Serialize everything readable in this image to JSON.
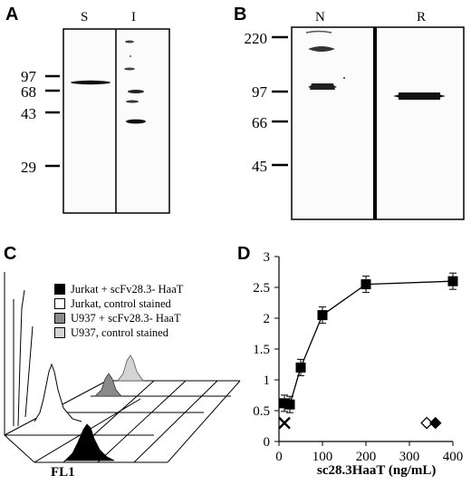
{
  "panel_a": {
    "letter": "A",
    "lanes": [
      "S",
      "I"
    ],
    "markers": [
      "97",
      "68",
      "43",
      "29"
    ]
  },
  "panel_b": {
    "letter": "B",
    "lanes": [
      "N",
      "R"
    ],
    "markers": [
      "220",
      "97",
      "66",
      "45"
    ]
  },
  "panel_c": {
    "letter": "C",
    "legend": [
      {
        "label": "Jurkat + scFv28.3- HaaT",
        "color": "#000000"
      },
      {
        "label": "Jurkat,     control stained",
        "color": "#ffffff"
      },
      {
        "label": "U937 + scFv28.3- HaaT",
        "color": "#8a8a8a"
      },
      {
        "label": "U937,     control stained",
        "color": "#d4d4d4"
      }
    ],
    "axis_label": "FL1"
  },
  "panel_d": {
    "letter": "D"
  },
  "chart_data": {
    "type": "scatter",
    "title": "",
    "xlabel": "sc28.3HaaT (ng/mL)",
    "ylabel": "",
    "xlim": [
      0,
      400
    ],
    "ylim": [
      0,
      3
    ],
    "x_ticks": [
      "0",
      "100",
      "200",
      "300",
      "400"
    ],
    "y_ticks": [
      "0",
      "0.5",
      "1",
      "1.5",
      "2",
      "2.5",
      "3"
    ],
    "series": [
      {
        "marker": "square-filled",
        "connected": true,
        "x": [
          12.5,
          25,
          50,
          100,
          200,
          400
        ],
        "y": [
          0.62,
          0.6,
          1.2,
          2.05,
          2.55,
          2.6
        ]
      },
      {
        "marker": "x",
        "connected": false,
        "x": [
          12.5
        ],
        "y": [
          0.3
        ]
      },
      {
        "marker": "diamond-open",
        "connected": false,
        "x": [
          340
        ],
        "y": [
          0.3
        ]
      },
      {
        "marker": "diamond-filled",
        "connected": false,
        "x": [
          360
        ],
        "y": [
          0.3
        ]
      }
    ]
  }
}
